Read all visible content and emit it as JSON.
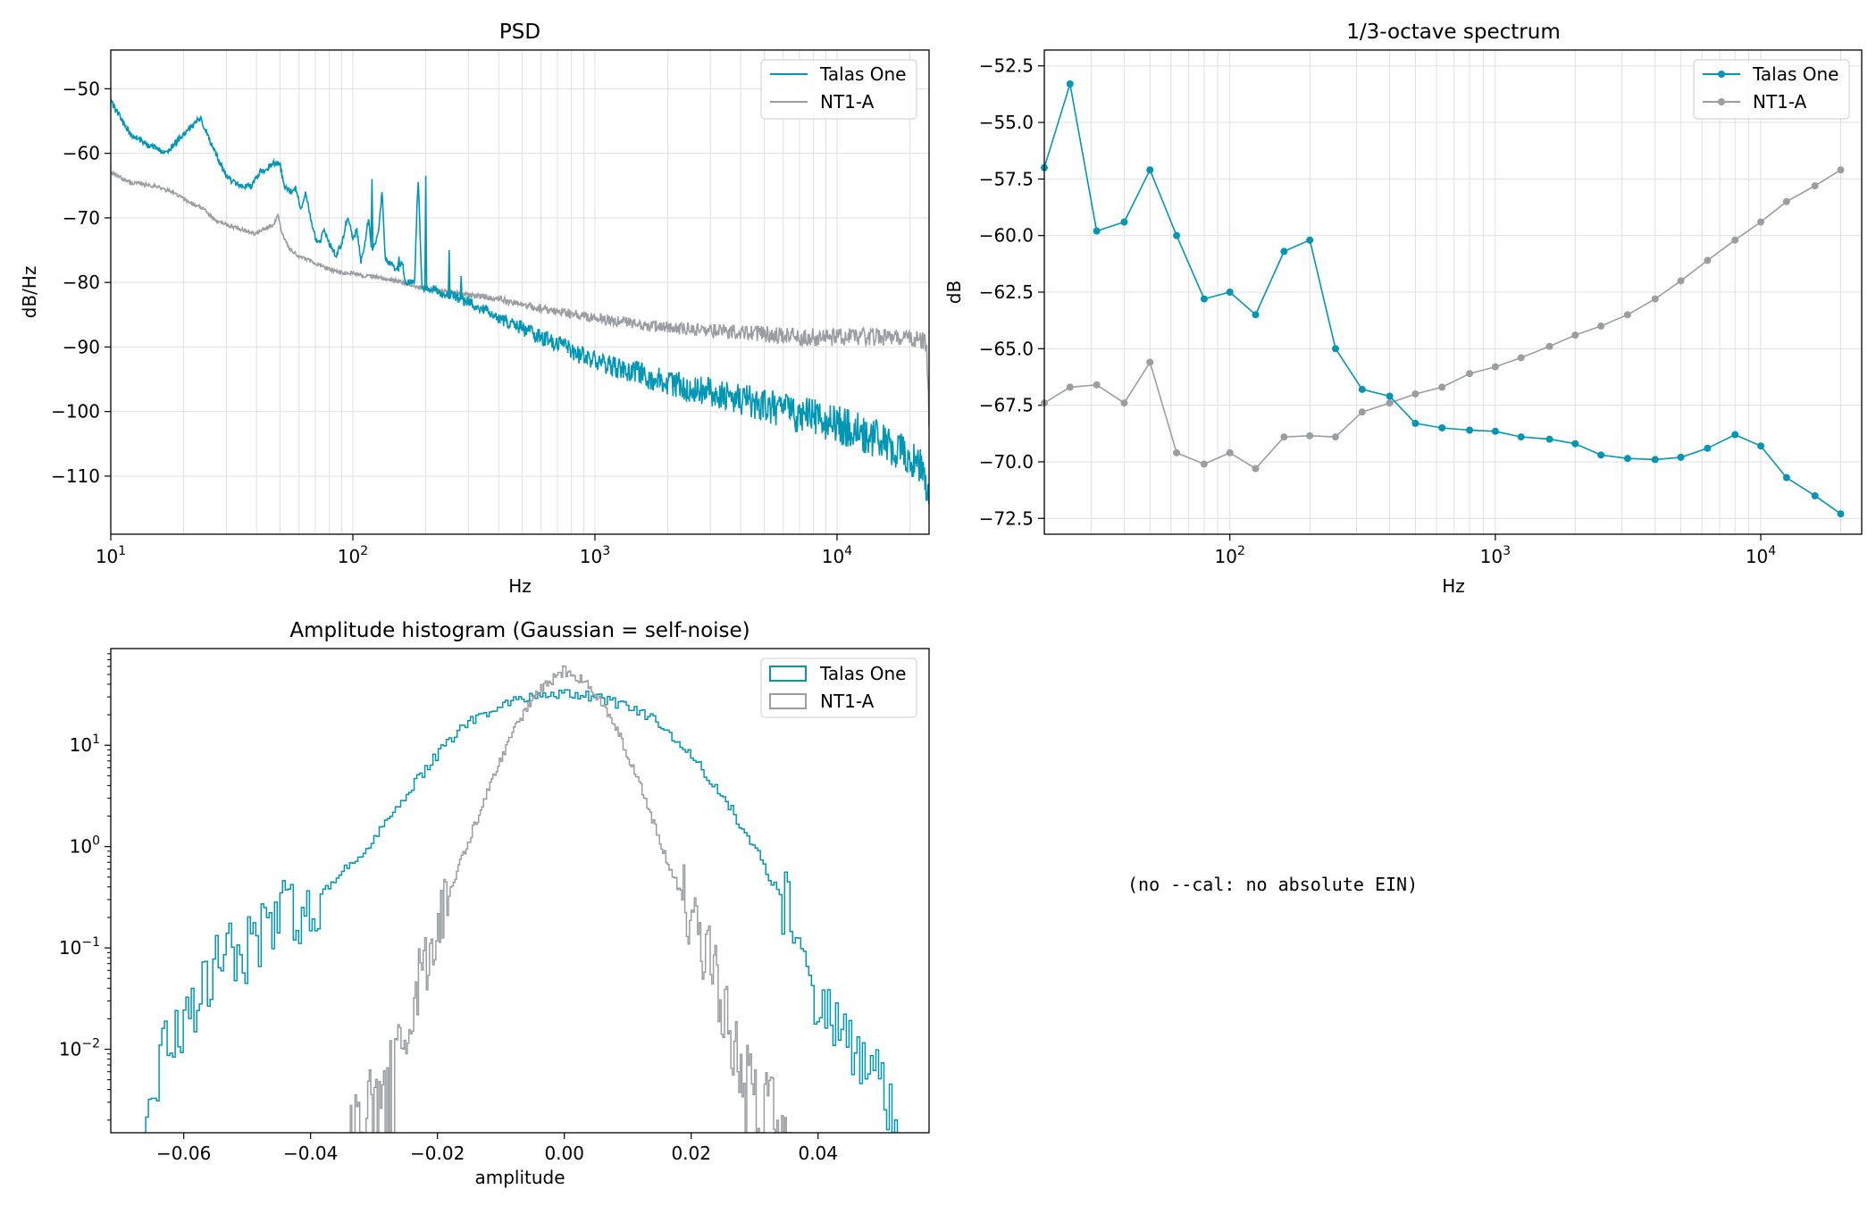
{
  "note_text": "(no --cal: no absolute EIN)",
  "colors": {
    "talas": "#0096b4",
    "nt1a": "#9a9ea3",
    "grid": "#e0e0e0"
  },
  "chart_data": [
    {
      "type": "line",
      "title": "PSD",
      "xlabel": "Hz",
      "ylabel": "dB/Hz",
      "xscale": "log",
      "xlim": [
        10,
        24000
      ],
      "ylim": [
        -119,
        -44
      ],
      "xticks": [
        {
          "v": 10,
          "label": "10^1"
        },
        {
          "v": 100,
          "label": "10^2"
        },
        {
          "v": 1000,
          "label": "10^3"
        },
        {
          "v": 10000,
          "label": "10^4"
        }
      ],
      "yticks": [
        -50,
        -60,
        -70,
        -80,
        -90,
        -100,
        -110
      ],
      "grid": true,
      "legend": "top-right",
      "series": [
        {
          "name": "Talas One",
          "color": "#0096b4",
          "x": [
            10,
            12,
            14,
            17,
            20,
            23.5,
            27,
            30,
            32,
            35,
            38,
            41,
            44,
            47,
            50,
            52,
            55,
            58,
            61,
            64,
            67,
            70,
            73,
            76,
            80,
            85,
            90,
            95,
            100,
            104,
            108,
            112,
            116,
            120,
            124,
            128,
            132,
            136,
            140,
            145,
            150,
            155,
            160,
            165,
            170,
            175,
            180,
            186,
            193,
            200,
            206,
            213,
            220,
            230,
            240,
            250,
            260,
            270,
            280,
            290,
            300,
            320,
            340,
            360,
            380,
            400,
            430,
            460,
            500,
            550,
            600,
            700,
            800,
            900,
            1000,
            1200,
            1500,
            2000,
            2500,
            3000,
            4000,
            5000,
            6000,
            7000,
            8000,
            9000,
            10000,
            12000,
            14000,
            16000,
            18000,
            20000,
            22000,
            23000,
            24000
          ],
          "y": [
            -52,
            -57,
            -58.5,
            -60,
            -57,
            -54.5,
            -60,
            -63.5,
            -64.5,
            -65,
            -65,
            -63,
            -62.5,
            -61.5,
            -61.5,
            -65,
            -66,
            -65.5,
            -68.5,
            -66,
            -70,
            -73,
            -74,
            -71.5,
            -74,
            -76,
            -74,
            -70,
            -73,
            -72,
            -77,
            -74,
            -70,
            -75,
            -74,
            -71.5,
            -66,
            -76,
            -77,
            -77,
            -78,
            -78,
            -77,
            -80,
            -80,
            -80,
            -80,
            -63.5,
            -81,
            -81,
            -81,
            -81,
            -81,
            -82,
            -82,
            -82,
            -82,
            -82.5,
            -82.5,
            -83,
            -83,
            -83.5,
            -84,
            -84.5,
            -85,
            -85.5,
            -86,
            -86.5,
            -87,
            -88,
            -88.5,
            -89.5,
            -90.5,
            -91.5,
            -92,
            -93,
            -94,
            -95.5,
            -96.5,
            -97,
            -98,
            -99,
            -100,
            -100.5,
            -101,
            -102,
            -102,
            -103,
            -104,
            -105,
            -106,
            -107,
            -108,
            -110,
            -115
          ],
          "spikes": [
            {
              "x": 120,
              "y": -64
            },
            {
              "x": 200,
              "y": -63.5
            },
            {
              "x": 155,
              "y": -76
            },
            {
              "x": 250,
              "y": -75
            },
            {
              "x": 280,
              "y": -79
            }
          ],
          "noise": [
            0.5,
            3
          ]
        },
        {
          "name": "NT1-A",
          "color": "#9a9ea3",
          "x": [
            10,
            12,
            15,
            18,
            21,
            24,
            27,
            30,
            33,
            36,
            40,
            44,
            47,
            49,
            51,
            55,
            60,
            65,
            70,
            75,
            80,
            90,
            100,
            110,
            120,
            140,
            160,
            180,
            200,
            250,
            300,
            400,
            500,
            700,
            1000,
            1500,
            2000,
            3000,
            5000,
            7000,
            10000,
            15000,
            20000,
            22000,
            23000,
            23500,
            24000
          ],
          "y": [
            -63,
            -64.5,
            -65,
            -66,
            -67.5,
            -68.5,
            -70.5,
            -71,
            -71.5,
            -72,
            -72.5,
            -71.5,
            -71,
            -69.5,
            -72.5,
            -75,
            -76,
            -76.5,
            -77,
            -77.5,
            -78,
            -78.5,
            -78.5,
            -79,
            -79,
            -79.5,
            -80,
            -80.5,
            -81,
            -81.5,
            -82,
            -82.5,
            -83.5,
            -84.5,
            -85.5,
            -86.5,
            -87,
            -87.5,
            -88,
            -88.5,
            -88.5,
            -88.5,
            -88.5,
            -89,
            -89,
            -91,
            -101
          ],
          "noise": [
            0.3,
            1.4
          ]
        }
      ]
    },
    {
      "type": "line",
      "title": "1/3-octave spectrum",
      "xlabel": "Hz",
      "ylabel": "dB",
      "xscale": "log",
      "xlim": [
        20,
        24000
      ],
      "ylim": [
        -73.2,
        -51.8
      ],
      "xticks": [
        {
          "v": 100,
          "label": "10^2"
        },
        {
          "v": 1000,
          "label": "10^3"
        },
        {
          "v": 10000,
          "label": "10^4"
        }
      ],
      "yticks": [
        -52.5,
        -55,
        -57.5,
        -60,
        -62.5,
        -65,
        -67.5,
        -70,
        -72.5
      ],
      "ytick_labels": [
        "−52.5",
        "−55.0",
        "−57.5",
        "−60.0",
        "−62.5",
        "−65.0",
        "−67.5",
        "−70.0",
        "−72.5"
      ],
      "grid": true,
      "legend": "top-right",
      "x": [
        20,
        25,
        31.5,
        40,
        50,
        63,
        80,
        100,
        125,
        160,
        200,
        250,
        315,
        400,
        500,
        630,
        800,
        1000,
        1250,
        1600,
        2000,
        2500,
        3150,
        4000,
        5000,
        6300,
        8000,
        10000,
        12500,
        16000,
        20000
      ],
      "series": [
        {
          "name": "Talas One",
          "color": "#0096b4",
          "values": [
            -57,
            -53.3,
            -59.8,
            -59.4,
            -57.1,
            -60,
            -62.8,
            -62.5,
            -63.5,
            -60.7,
            -60.2,
            -65,
            -66.8,
            -67.1,
            -68.3,
            -68.5,
            -68.6,
            -68.65,
            -68.9,
            -69,
            -69.2,
            -69.7,
            -69.85,
            -69.9,
            -69.8,
            -69.4,
            -68.8,
            -69.3,
            -70.7,
            -71.5,
            -72.3
          ]
        },
        {
          "name": "NT1-A",
          "color": "#9a9ea3",
          "values": [
            -67.4,
            -66.7,
            -66.6,
            -67.4,
            -65.6,
            -69.6,
            -70.1,
            -69.6,
            -70.3,
            -68.9,
            -68.85,
            -68.9,
            -67.8,
            -67.4,
            -67,
            -66.7,
            -66.1,
            -65.8,
            -65.4,
            -64.9,
            -64.4,
            -64,
            -63.5,
            -62.8,
            -62,
            -61.1,
            -60.2,
            -59.4,
            -58.5,
            -57.8,
            -57.1
          ]
        }
      ]
    },
    {
      "type": "histogram",
      "title": "Amplitude histogram (Gaussian = self-noise)",
      "xlabel": "amplitude",
      "ylabel": "",
      "yscale": "log",
      "xlim": [
        -0.0715,
        0.0575
      ],
      "ylim": [
        0.0015,
        90
      ],
      "xticks": [
        -0.06,
        -0.04,
        -0.02,
        0.0,
        0.02,
        0.04
      ],
      "xtick_labels": [
        "−0.06",
        "−0.04",
        "−0.02",
        "0.00",
        "0.02",
        "0.04"
      ],
      "yticks": [
        {
          "v": 10,
          "label": "10^1"
        },
        {
          "v": 1,
          "label": "10^0"
        },
        {
          "v": 0.1,
          "label": "10^-1"
        },
        {
          "v": 0.01,
          "label": "10^-2"
        }
      ],
      "legend": "top-right",
      "series": [
        {
          "name": "Talas One",
          "color": "#0096b4",
          "x": [
            -0.066,
            -0.062,
            -0.058,
            -0.054,
            -0.05,
            -0.045,
            -0.04,
            -0.035,
            -0.03,
            -0.025,
            -0.02,
            -0.015,
            -0.01,
            -0.005,
            0.0,
            0.005,
            0.01,
            0.015,
            0.02,
            0.025,
            0.03,
            0.035,
            0.04,
            0.045,
            0.05,
            0.0525
          ],
          "counts": [
            0.003,
            0.012,
            0.03,
            0.07,
            0.1,
            0.2,
            0.25,
            0.55,
            1.2,
            3.2,
            8,
            17,
            25,
            30,
            32,
            30,
            24,
            17,
            8,
            3.2,
            1,
            0.25,
            0.03,
            0.01,
            0.004,
            0.0015
          ]
        },
        {
          "name": "NT1-A",
          "color": "#9a9ea3",
          "x": [
            -0.034,
            -0.03,
            -0.027,
            -0.024,
            -0.02,
            -0.016,
            -0.012,
            -0.008,
            -0.004,
            0.0,
            0.004,
            0.008,
            0.012,
            0.016,
            0.02,
            0.024,
            0.027,
            0.03,
            0.034,
            0.036
          ],
          "counts": [
            0.002,
            0.003,
            0.006,
            0.03,
            0.15,
            0.8,
            3.5,
            14,
            35,
            55,
            40,
            16,
            4,
            0.8,
            0.2,
            0.05,
            0.01,
            0.004,
            0.002,
            0.0015
          ]
        }
      ]
    }
  ]
}
